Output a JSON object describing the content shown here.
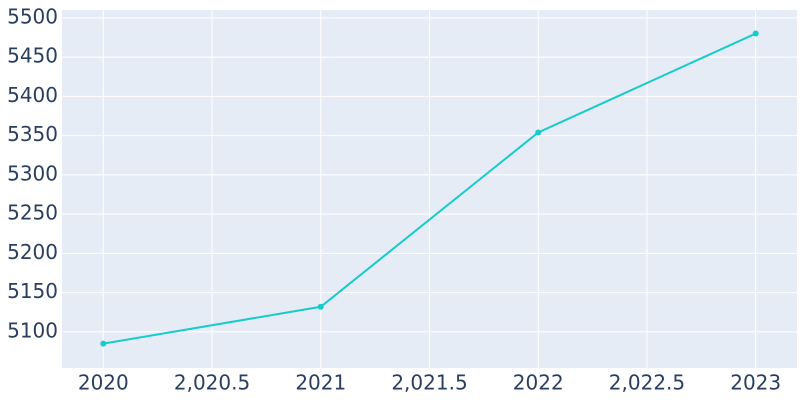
{
  "chart_data": {
    "type": "line",
    "x": [
      2020,
      2021,
      2022,
      2023
    ],
    "series": [
      {
        "color": "#17cbcb",
        "values": [
          5085,
          5132,
          5354,
          5480
        ]
      }
    ],
    "xlim": [
      2019.81,
      2023.19
    ],
    "xticks": [
      2020,
      {
        "value": 2020.5,
        "label": "2,020.5"
      },
      2021,
      {
        "value": 2021.5,
        "label": "2,021.5"
      },
      2022,
      {
        "value": 2022.5,
        "label": "2,022.5"
      },
      2023
    ],
    "ylim": [
      5054,
      5510
    ],
    "yticks": [
      5100,
      5150,
      5200,
      5250,
      5300,
      5350,
      5400,
      5450,
      5500
    ],
    "grid": true
  }
}
